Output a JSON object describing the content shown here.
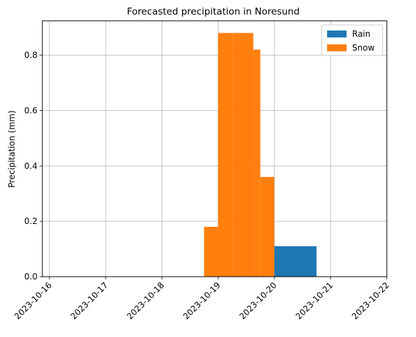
{
  "colors": {
    "rain": "#1f77b4",
    "snow": "#ff7f0e",
    "grid": "#b0b0b0",
    "axis": "#000000"
  },
  "chart_data": {
    "type": "bar",
    "title": "Forecasted precipitation in Noresund",
    "xlabel": "",
    "ylabel": "Precipitation (mm)",
    "x_ticks": [
      "2023-10-16",
      "2023-10-17",
      "2023-10-18",
      "2023-10-19",
      "2023-10-20",
      "2023-10-21",
      "2023-10-22"
    ],
    "y_ticks": [
      "0.0",
      "0.2",
      "0.4",
      "0.6",
      "0.8"
    ],
    "xlim": [
      "2023-10-15T21:00",
      "2023-10-22T00:00"
    ],
    "ylim": [
      0,
      0.924
    ],
    "grid": true,
    "legend": {
      "placement": "top-right"
    },
    "series": [
      {
        "name": "Rain",
        "color_key": "rain",
        "bars": [
          {
            "start": "2023-10-20T00:00",
            "end": "2023-10-20T18:00",
            "value": 0.11
          }
        ]
      },
      {
        "name": "Snow",
        "color_key": "snow",
        "bars": [
          {
            "start": "2023-10-18T18:00",
            "end": "2023-10-19T00:00",
            "value": 0.18
          },
          {
            "start": "2023-10-19T00:00",
            "end": "2023-10-19T06:00",
            "value": 0.88
          },
          {
            "start": "2023-10-19T06:00",
            "end": "2023-10-19T12:00",
            "value": 0.88
          },
          {
            "start": "2023-10-19T12:00",
            "end": "2023-10-19T15:00",
            "value": 0.88
          },
          {
            "start": "2023-10-19T15:00",
            "end": "2023-10-19T18:00",
            "value": 0.82
          },
          {
            "start": "2023-10-19T18:00",
            "end": "2023-10-20T00:00",
            "value": 0.36
          }
        ]
      }
    ]
  }
}
